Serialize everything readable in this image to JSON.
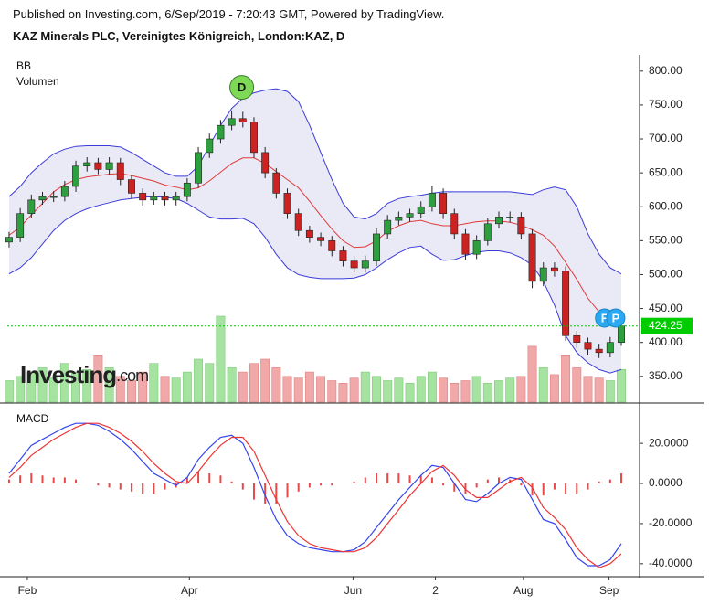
{
  "header": {
    "published": "Published on Investing.com, 6/Sep/2019 - 7:20:43 GMT, Powered by TradingView.",
    "symbol": "KAZ Minerals PLC, Vereinigtes Königreich, London:KAZ, D"
  },
  "logo": {
    "main": "Investing",
    "suffix": ".com"
  },
  "chart_data": [
    {
      "type": "candlestick",
      "labels": [
        "BB",
        "Volumen"
      ],
      "categories": [
        null,
        null,
        null,
        null,
        null,
        null,
        null,
        null,
        null,
        null,
        null,
        null,
        null,
        null,
        null,
        null,
        null,
        null,
        null,
        null,
        null,
        null,
        null,
        null,
        null,
        null,
        null,
        null,
        null,
        null,
        null,
        null,
        null,
        null,
        null,
        null,
        null,
        null,
        null,
        null,
        null,
        null,
        null,
        null,
        null,
        null,
        null,
        null,
        null,
        null,
        null,
        null,
        null,
        null,
        null,
        null
      ],
      "open": [
        548,
        555,
        590,
        610,
        615,
        615,
        630,
        660,
        665,
        655,
        665,
        640,
        620,
        610,
        615,
        610,
        615,
        635,
        680,
        700,
        720,
        730,
        725,
        680,
        650,
        620,
        590,
        565,
        555,
        550,
        535,
        520,
        510,
        520,
        560,
        580,
        585,
        590,
        600,
        620,
        590,
        560,
        530,
        550,
        575,
        585,
        585,
        560,
        490,
        510,
        505,
        410,
        400,
        390,
        385,
        400
      ],
      "high": [
        563,
        598,
        618,
        622,
        623,
        638,
        668,
        673,
        672,
        673,
        672,
        647,
        627,
        622,
        622,
        622,
        642,
        688,
        708,
        728,
        742,
        740,
        732,
        688,
        657,
        627,
        597,
        572,
        562,
        557,
        542,
        527,
        528,
        568,
        588,
        593,
        597,
        608,
        630,
        627,
        597,
        567,
        558,
        583,
        593,
        593,
        592,
        567,
        518,
        518,
        512,
        417,
        407,
        398,
        408,
        430
      ],
      "low": [
        540,
        548,
        583,
        603,
        607,
        608,
        622,
        652,
        648,
        648,
        632,
        612,
        602,
        603,
        602,
        602,
        608,
        628,
        672,
        693,
        713,
        717,
        672,
        642,
        612,
        582,
        557,
        547,
        542,
        527,
        512,
        503,
        503,
        513,
        553,
        573,
        578,
        583,
        593,
        582,
        552,
        522,
        523,
        543,
        568,
        577,
        552,
        480,
        483,
        497,
        402,
        392,
        382,
        377,
        378,
        395
      ],
      "close": [
        555,
        590,
        610,
        615,
        615,
        630,
        660,
        665,
        655,
        665,
        640,
        620,
        610,
        615,
        610,
        615,
        635,
        680,
        700,
        720,
        730,
        725,
        680,
        650,
        620,
        590,
        565,
        555,
        550,
        535,
        520,
        510,
        520,
        560,
        580,
        585,
        590,
        600,
        620,
        590,
        560,
        530,
        550,
        575,
        585,
        585,
        560,
        490,
        510,
        505,
        410,
        400,
        390,
        385,
        400,
        424.25
      ],
      "up_color": "#2e9e3e",
      "down_color": "#cc2222",
      "bands": {
        "upper": [
          615,
          630,
          650,
          665,
          678,
          685,
          689,
          690,
          690,
          690,
          688,
          680,
          670,
          660,
          650,
          645,
          645,
          660,
          690,
          720,
          745,
          760,
          768,
          772,
          774,
          770,
          755,
          720,
          680,
          640,
          605,
          585,
          582,
          590,
          605,
          612,
          615,
          617,
          620,
          622,
          622,
          622,
          622,
          622,
          622,
          622,
          620,
          618,
          625,
          629,
          625,
          600,
          560,
          530,
          510,
          501
        ],
        "middle": [
          558,
          570,
          588,
          605,
          622,
          633,
          640,
          644,
          646,
          648,
          649,
          646,
          642,
          638,
          632,
          629,
          625,
          628,
          638,
          651,
          664,
          672,
          672,
          664,
          652,
          640,
          628,
          608,
          587,
          567,
          550,
          540,
          541,
          550,
          564,
          572,
          578,
          580,
          575,
          572,
          572,
          575,
          578,
          579,
          579,
          577,
          573,
          566,
          558,
          542,
          518,
          493,
          465,
          445,
          433,
          431
        ],
        "lower": [
          501,
          510,
          525,
          545,
          565,
          580,
          590,
          597,
          602,
          606,
          610,
          612,
          614,
          615,
          614,
          612,
          605,
          595,
          585,
          582,
          582,
          583,
          575,
          555,
          530,
          510,
          500,
          496,
          494,
          494,
          494,
          495,
          500,
          510,
          522,
          532,
          540,
          542,
          530,
          521,
          522,
          528,
          533,
          535,
          535,
          532,
          525,
          514,
          490,
          455,
          410,
          385,
          370,
          360,
          355,
          360
        ],
        "band_color": "#3b3bdb",
        "middle_color": "#e03a3a",
        "fill": "#e3e3f3"
      },
      "volume": [
        25,
        30,
        35,
        40,
        28,
        45,
        35,
        38,
        55,
        40,
        30,
        25,
        35,
        45,
        30,
        28,
        35,
        50,
        45,
        100,
        40,
        35,
        45,
        50,
        40,
        30,
        28,
        35,
        30,
        25,
        22,
        28,
        35,
        30,
        25,
        28,
        22,
        30,
        35,
        28,
        22,
        25,
        30,
        22,
        25,
        28,
        30,
        65,
        40,
        32,
        55,
        40,
        30,
        28,
        25,
        38
      ],
      "volume_up_color": "#a6e3a1",
      "volume_down_color": "#f0a8a8",
      "events": [
        {
          "label": "D",
          "index": 20.9,
          "price": 776,
          "color": "#7ed957"
        },
        {
          "label": "F",
          "index": 53.5,
          "price": 436,
          "color": "#2aa8f2"
        },
        {
          "label": "P",
          "index": 54.5,
          "price": 436,
          "color": "#2aa8f2"
        }
      ],
      "last_color": "#00cc00",
      "xlim": [
        -0.16,
        56.64
      ],
      "ylim": [
        312,
        824
      ],
      "yticks": [
        {
          "value": 350,
          "label": "350.00"
        },
        {
          "value": 400,
          "label": "400.00"
        },
        {
          "value": 450,
          "label": "450.00"
        },
        {
          "value": 500,
          "label": "500.00"
        },
        {
          "value": 550,
          "label": "550.00"
        },
        {
          "value": 600,
          "label": "600.00"
        },
        {
          "value": 650,
          "label": "650.00"
        },
        {
          "value": 700,
          "label": "700.00"
        },
        {
          "value": 750,
          "label": "750.00"
        },
        {
          "value": 800,
          "label": "800.00"
        }
      ]
    },
    {
      "type": "line",
      "title": "MACD",
      "categories": [
        null,
        null,
        null,
        null,
        null,
        null,
        null,
        null,
        null,
        null,
        null,
        null,
        null,
        null,
        null,
        null,
        null,
        null,
        null,
        null,
        null,
        null,
        null,
        null,
        null,
        null,
        null,
        null,
        null,
        null,
        null,
        null,
        null,
        null,
        null,
        null,
        null,
        null,
        null,
        null,
        null,
        null,
        null,
        null,
        null,
        null,
        null,
        null,
        null,
        null,
        null,
        null,
        null,
        null,
        null,
        null
      ],
      "series": [
        {
          "color": "#3344ee",
          "values": [
            5,
            12,
            19,
            22,
            25,
            28,
            30,
            30,
            29,
            26,
            22,
            17,
            11,
            5,
            2,
            -1,
            3,
            12,
            18,
            23,
            24,
            20,
            8,
            -6,
            -18,
            -26,
            -30,
            -32,
            -33,
            -34,
            -34,
            -33,
            -29,
            -22,
            -15,
            -8,
            -2,
            4,
            9,
            8,
            0,
            -8,
            -9,
            -5,
            0,
            3,
            2,
            -8,
            -18,
            -20,
            -28,
            -37,
            -41,
            -41,
            -38,
            -30
          ]
        },
        {
          "color": "#ee3333",
          "values": [
            3,
            8,
            14,
            18,
            22,
            25,
            28,
            30,
            30,
            28,
            25,
            21,
            16,
            10,
            5,
            1,
            0,
            6,
            13,
            19,
            23,
            23,
            16,
            4,
            -8,
            -19,
            -26,
            -30,
            -32,
            -33,
            -34,
            -34,
            -32,
            -27,
            -20,
            -13,
            -6,
            0,
            6,
            9,
            4,
            -3,
            -7,
            -7,
            -3,
            1,
            3,
            -2,
            -12,
            -17,
            -23,
            -32,
            -38,
            -42,
            -40,
            -35
          ]
        }
      ],
      "histogram": {
        "color": "#e84848",
        "values": [
          2,
          4,
          5,
          4,
          3,
          3,
          2,
          0,
          -1,
          -2,
          -3,
          -4,
          -5,
          -5,
          -3,
          -2,
          3,
          6,
          5,
          4,
          1,
          -3,
          -8,
          -10,
          -10,
          -7,
          -4,
          -2,
          -1,
          -1,
          0,
          1,
          3,
          5,
          5,
          5,
          4,
          4,
          3,
          -1,
          -4,
          -5,
          -2,
          2,
          3,
          2,
          -1,
          -6,
          -6,
          -3,
          -5,
          -5,
          -3,
          1,
          2,
          5
        ]
      },
      "xlim": [
        -0.16,
        56.64
      ],
      "ylim": [
        -46,
        36
      ],
      "yticks": [
        {
          "value": -40,
          "label": "-40.0000"
        },
        {
          "value": -20,
          "label": "-20.0000"
        },
        {
          "value": 0,
          "label": "0.0000"
        },
        {
          "value": 20,
          "label": "20.0000"
        }
      ],
      "xticks": [
        {
          "value": 1.64,
          "label": "Feb"
        },
        {
          "value": 16.2,
          "label": "Apr"
        },
        {
          "value": 30.9,
          "label": "Jun"
        },
        {
          "value": 38.3,
          "label": "2"
        },
        {
          "value": 46.2,
          "label": "Aug"
        },
        {
          "value": 53.9,
          "label": "Sep"
        }
      ]
    }
  ]
}
